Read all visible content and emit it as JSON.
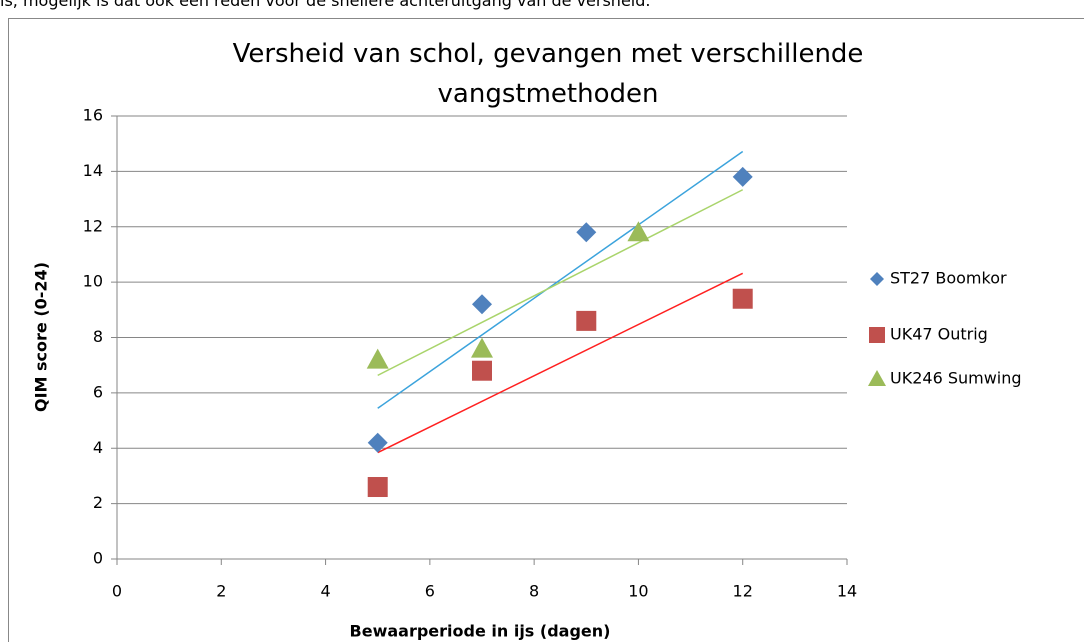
{
  "page_text": "is, mogelijk is dat ook een reden voor de snellere achteruitgang van de versheid.",
  "chart_data": {
    "type": "scatter",
    "title": "Versheid van schol, gevangen met verschillende vangstmethoden",
    "x_label": "Bewaarperiode in ijs (dagen)",
    "y_label": "QIM score (0-24)",
    "xlim": [
      0,
      14
    ],
    "xticks": [
      0,
      2,
      4,
      6,
      8,
      10,
      12,
      14
    ],
    "ylim": [
      0,
      16
    ],
    "yticks": [
      0,
      2,
      4,
      6,
      8,
      10,
      12,
      14,
      16
    ],
    "grid": true,
    "legend": "right",
    "trendline": "linear",
    "series": [
      {
        "name": "ST27 Boomkor",
        "color": "#4f81bd",
        "trendline_color": "#3ba3dc",
        "marker": "diamond",
        "x": [
          5,
          7,
          9,
          12
        ],
        "values": [
          4.2,
          9.2,
          11.8,
          13.8
        ]
      },
      {
        "name": "UK47 Outrig",
        "color": "#c0504d",
        "trendline_color": "#ff2020",
        "marker": "square",
        "x": [
          5,
          7,
          9,
          12
        ],
        "values": [
          2.6,
          6.8,
          8.6,
          9.4
        ]
      },
      {
        "name": "UK246 Sumwing",
        "color": "#9bbb59",
        "trendline_color": "#a9d46b",
        "marker": "triangle",
        "x": [
          5,
          7,
          10
        ],
        "values": [
          7.2,
          7.6,
          11.8
        ]
      }
    ]
  }
}
